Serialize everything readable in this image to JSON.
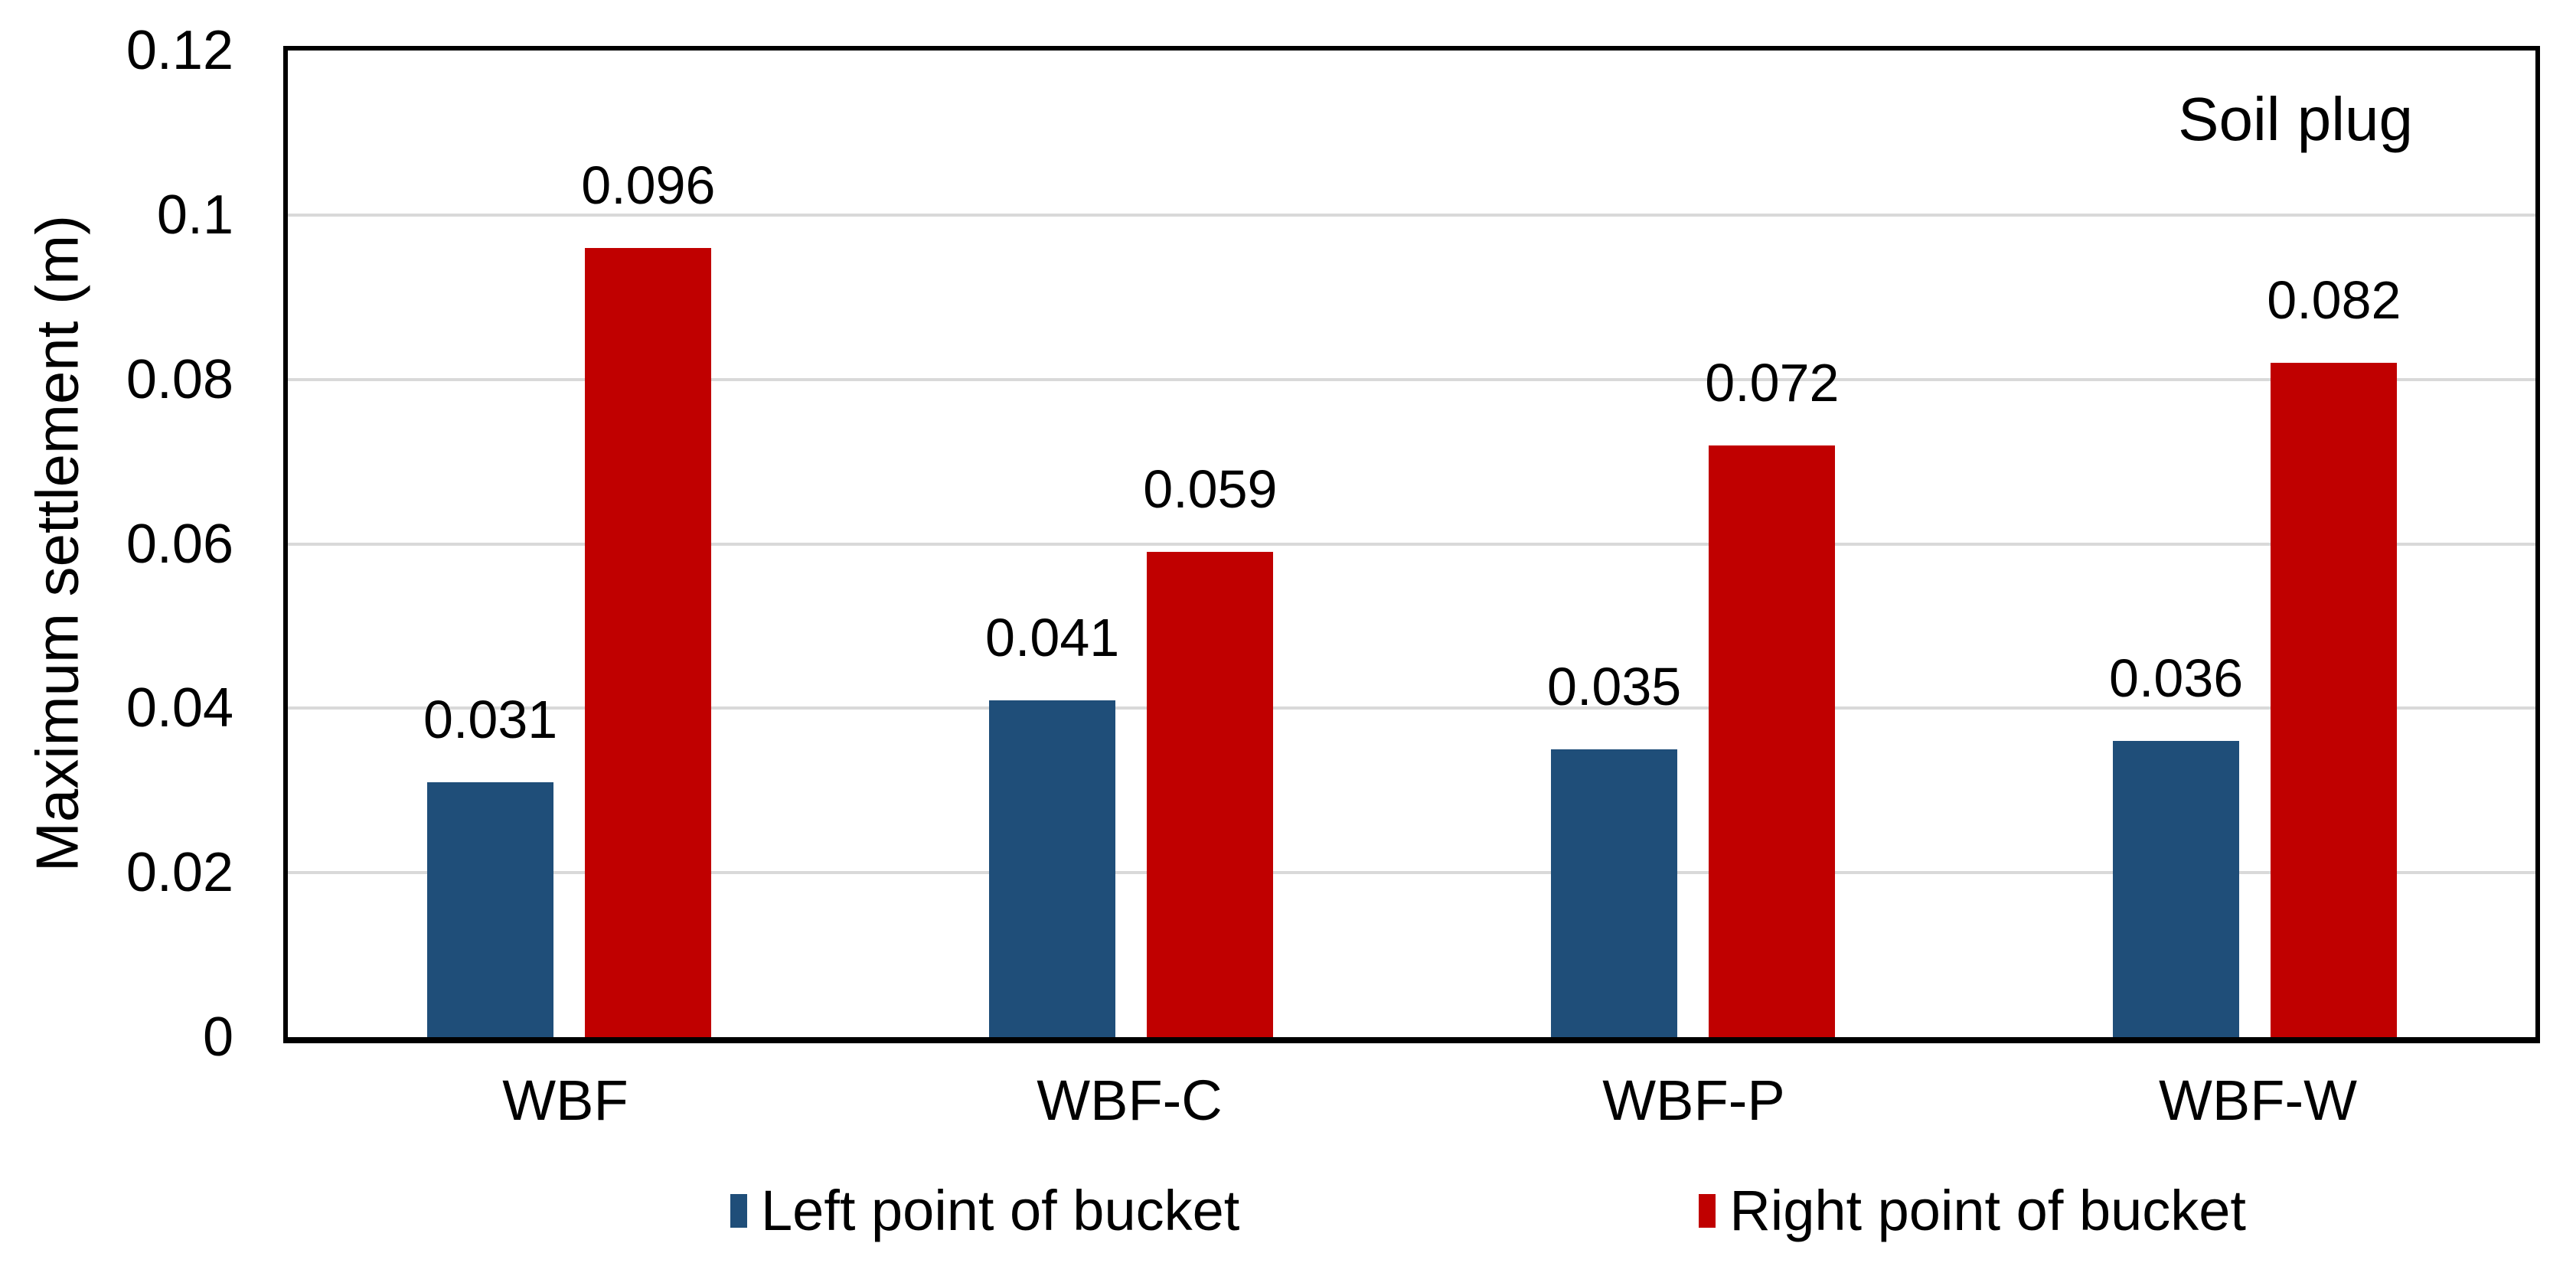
{
  "chart_data": {
    "type": "bar",
    "annotation": "Soil plug",
    "categories": [
      "WBF",
      "WBF-C",
      "WBF-P",
      "WBF-W"
    ],
    "series": [
      {
        "name": "Left point of bucket",
        "color": "#1F4E79",
        "values": [
          0.031,
          0.041,
          0.035,
          0.036
        ],
        "labels": [
          "0.031",
          "0.041",
          "0.035",
          "0.036"
        ]
      },
      {
        "name": "Right point of bucket",
        "color": "#C00000",
        "values": [
          0.096,
          0.059,
          0.072,
          0.082
        ],
        "labels": [
          "0.096",
          "0.059",
          "0.072",
          "0.082"
        ]
      }
    ],
    "xlabel": "",
    "ylabel": "Maximum settlement (m)",
    "ylim": [
      0,
      0.12
    ],
    "yticks": [
      "0",
      "0.02",
      "0.04",
      "0.06",
      "0.08",
      "0.1",
      "0.12"
    ],
    "grid": true,
    "gridline_color": "#D9D9D9",
    "axis_color": "#000000",
    "legend_position": "bottom"
  }
}
